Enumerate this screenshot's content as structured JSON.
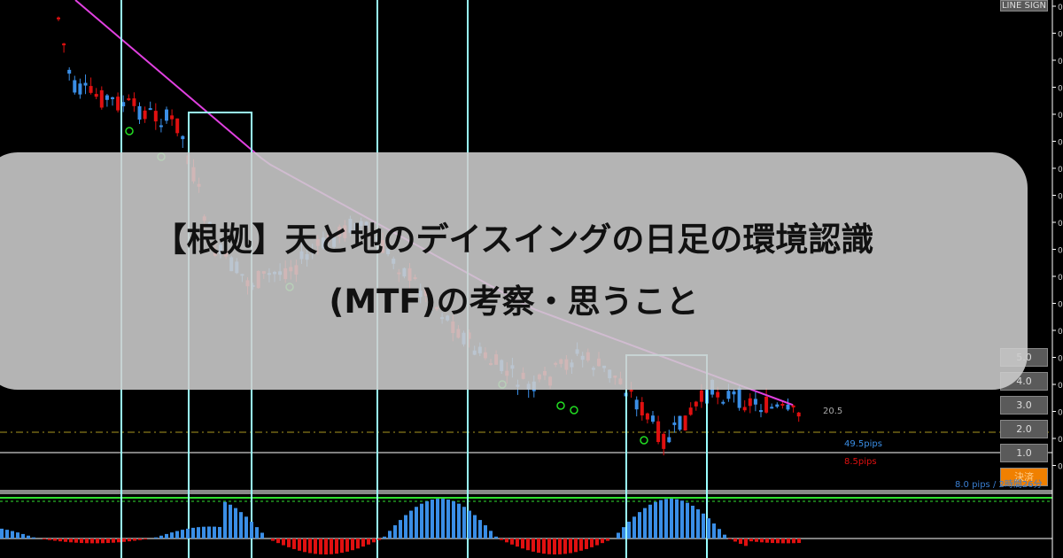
{
  "toolbar": {
    "line_sign": "LINE SIGN"
  },
  "lot_buttons": [
    "5.0",
    "4.0",
    "3.0",
    "2.0",
    "1.0"
  ],
  "close_button": "決済",
  "labels": {
    "value": "20.5",
    "pips_blue": "49.5pips",
    "pips_red": "8.5pips",
    "status": "8.0 pips / 2時間26分"
  },
  "title": {
    "line1": "【根拠】天と地のデイスイングの日足の環境認識",
    "line2": "(MTF)の考察・思うこと"
  },
  "colors": {
    "bull": "#3a8ee6",
    "bear": "#e01010",
    "ma": "#e040e0",
    "box": "#9ff",
    "accent": "#f08000"
  }
}
